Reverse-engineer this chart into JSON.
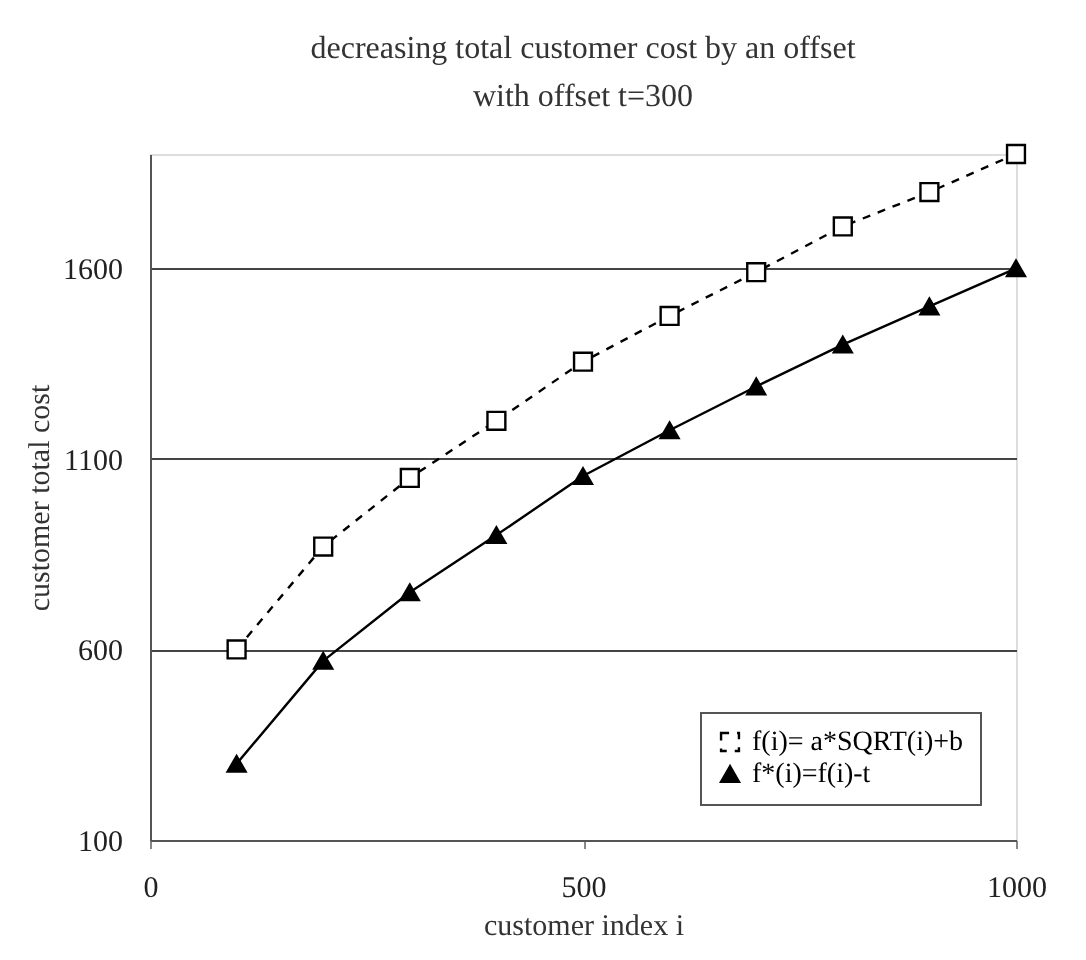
{
  "chart_data": {
    "type": "line",
    "title": "decreasing total customer cost by an offset",
    "subtitle": "with offset t=300",
    "xlabel": "customer index i",
    "ylabel": "customer total cost",
    "x": [
      100,
      200,
      300,
      400,
      500,
      600,
      700,
      800,
      900,
      1000
    ],
    "series": [
      {
        "name": "f(i)= a*SQRT(i)+b",
        "color": "#000000",
        "marker": "square",
        "line_style": "dashed",
        "values": [
          600,
          870,
          1050,
          1200,
          1355,
          1475,
          1590,
          1710,
          1800,
          1900
        ]
      },
      {
        "name": "f*(i)=f(i)-t",
        "color": "#000000",
        "marker": "triangle",
        "line_style": "solid",
        "values": [
          300,
          570,
          750,
          900,
          1055,
          1175,
          1290,
          1400,
          1500,
          1600
        ]
      }
    ],
    "xlim": [
      0,
      1000
    ],
    "xticks": [
      0,
      500,
      1000
    ],
    "ylim": [
      100,
      1900
    ],
    "yticks": [
      100,
      600,
      1100,
      1600
    ],
    "grid": "y",
    "legend": "bottom right"
  }
}
